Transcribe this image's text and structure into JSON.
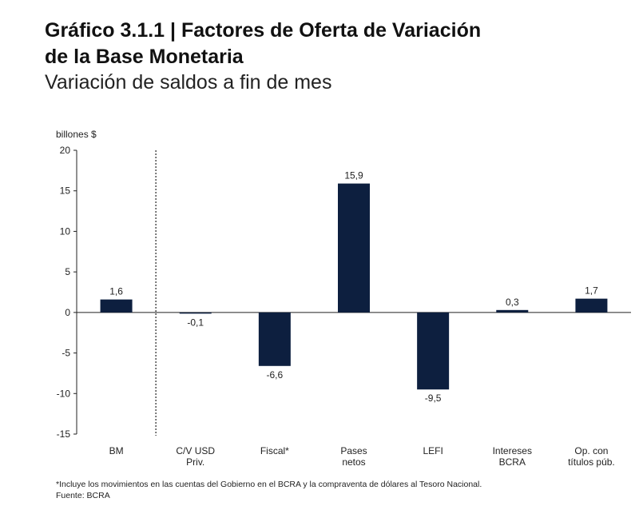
{
  "header": {
    "title_line1": "Gráfico 3.1.1 | Factores de Oferta de Variación",
    "title_line2": "de la Base Monetaria",
    "subtitle": "Variación de saldos a fin de mes"
  },
  "chart_data": {
    "type": "bar",
    "ylabel": "billones $",
    "ylim": [
      -15,
      20
    ],
    "yticks": [
      20,
      15,
      10,
      5,
      0,
      -5,
      -10,
      -15
    ],
    "categories": [
      [
        "BM"
      ],
      [
        "C/V USD",
        "Priv."
      ],
      [
        "Fiscal*"
      ],
      [
        "Pases",
        "netos"
      ],
      [
        "LEFI"
      ],
      [
        "Intereses",
        "BCRA"
      ],
      [
        "Op. con",
        "títulos púb."
      ]
    ],
    "values": [
      1.6,
      -0.1,
      -6.6,
      15.9,
      -9.5,
      0.3,
      1.7
    ],
    "data_labels": [
      "1,6",
      "-0,1",
      "-6,6",
      "15,9",
      "-9,5",
      "0,3",
      "1,7"
    ],
    "bar_color": "#0d1f3f",
    "separator_after_category": 0
  },
  "notes": {
    "footnote": "*Incluye los movimientos en las cuentas del Gobierno en el BCRA y la compraventa de dólares al Tesoro Nacional.",
    "source": "Fuente: BCRA"
  }
}
